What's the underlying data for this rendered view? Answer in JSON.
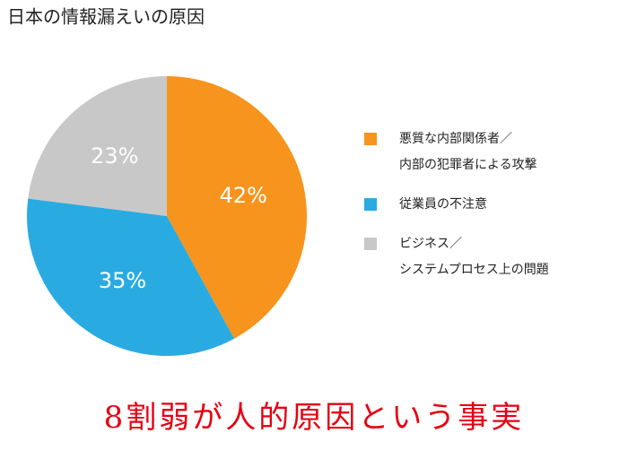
{
  "chart_data": {
    "type": "pie",
    "title": "日本の情報漏えいの原因",
    "categories": [
      [
        "悪質な内部関係者／",
        "内部の犯罪者による攻撃"
      ],
      [
        "従業員の不注意"
      ],
      [
        "ビジネス／",
        "システムプロセス上の問題"
      ]
    ],
    "values": [
      42,
      35,
      23
    ],
    "value_labels": [
      "42%",
      "35%",
      "23%"
    ],
    "colors": [
      "#f7941d",
      "#29abe2",
      "#c8c8c8"
    ],
    "annotation": "8割弱が人的原因という事実"
  }
}
